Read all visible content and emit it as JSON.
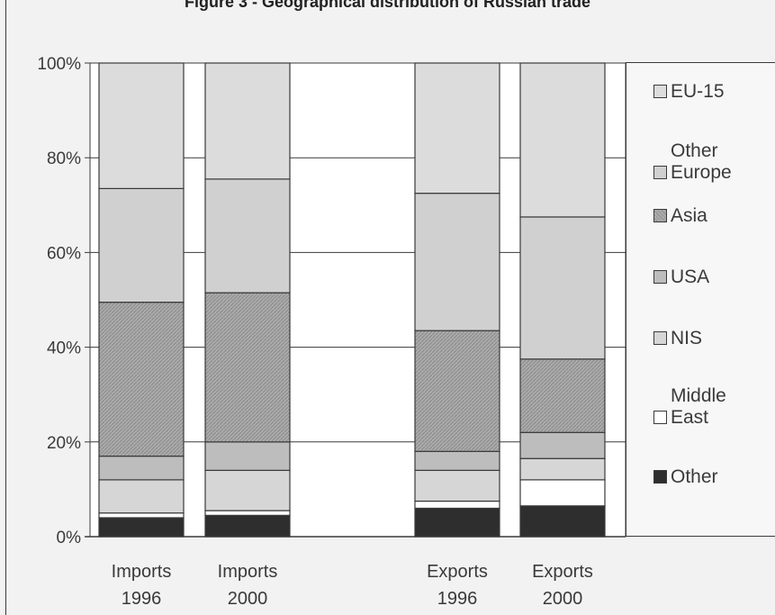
{
  "chart_data": {
    "type": "bar",
    "stacked": true,
    "title": "Figure 3 - Geographical distribution of Russian trade",
    "xlabel": "",
    "ylabel": "",
    "ylim": [
      0,
      100
    ],
    "yticks": [
      "0%",
      "20%",
      "40%",
      "60%",
      "80%",
      "100%"
    ],
    "grid": true,
    "legend_position": "right",
    "categories": [
      {
        "line1": "Imports",
        "line2": "1996"
      },
      {
        "line1": "Imports",
        "line2": "2000"
      },
      {
        "line1": "Exports",
        "line2": "1996"
      },
      {
        "line1": "Exports",
        "line2": "2000"
      }
    ],
    "series": [
      {
        "name": "Other",
        "color": "#2e2e2e",
        "values": [
          4,
          4.5,
          6,
          6.5
        ]
      },
      {
        "name": "Middle East",
        "color": "#ffffff",
        "values": [
          1,
          1,
          1.5,
          5.5
        ]
      },
      {
        "name": "NIS",
        "color": "#d6d6d6",
        "values": [
          7,
          8.5,
          6.5,
          4.5
        ]
      },
      {
        "name": "USA",
        "color": "#bdbdbd",
        "values": [
          5,
          6,
          4,
          5.5
        ]
      },
      {
        "name": "Asia",
        "color": "#ababab",
        "values": [
          32.5,
          31.5,
          25.5,
          15.5
        ]
      },
      {
        "name": "Other Europe",
        "color": "#d0d0d0",
        "values": [
          24,
          24,
          29,
          30
        ]
      },
      {
        "name": "EU-15",
        "color": "#dcdcdc",
        "values": [
          26.5,
          24.5,
          27.5,
          32.5
        ]
      }
    ],
    "legend": [
      {
        "label": "EU-15",
        "color": "#dcdcdc"
      },
      {
        "label": "Other\nEurope",
        "color": "#d0d0d0"
      },
      {
        "label": "Asia",
        "color": "#ababab"
      },
      {
        "label": "USA",
        "color": "#bdbdbd"
      },
      {
        "label": "NIS",
        "color": "#d6d6d6"
      },
      {
        "label": "Middle\nEast",
        "color": "#ffffff"
      },
      {
        "label": "Other",
        "color": "#2e2e2e"
      }
    ]
  }
}
